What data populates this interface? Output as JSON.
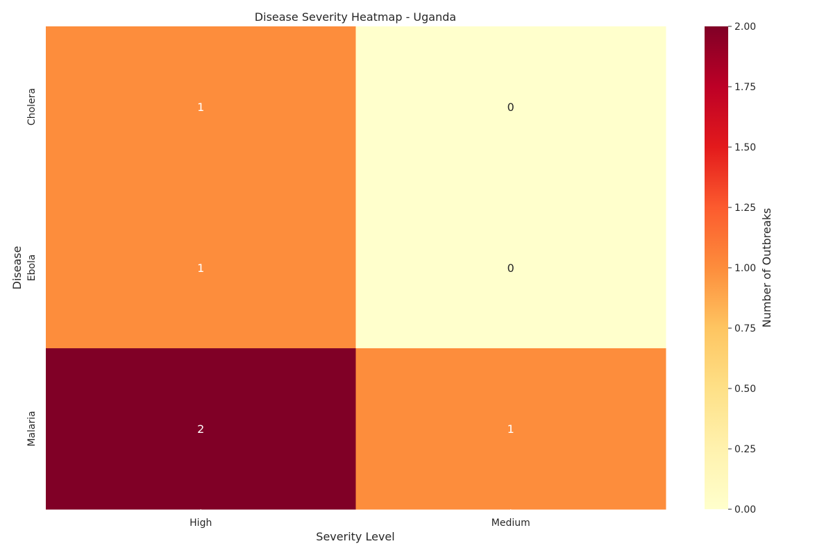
{
  "chart_data": {
    "type": "heatmap",
    "title": "Disease Severity Heatmap - Uganda",
    "xlabel": "Severity Level",
    "ylabel": "Disease",
    "x_categories": [
      "High",
      "Medium"
    ],
    "y_categories": [
      "Cholera",
      "Ebola",
      "Malaria"
    ],
    "values": [
      [
        1,
        0
      ],
      [
        1,
        0
      ],
      [
        2,
        1
      ]
    ],
    "colorbar": {
      "label": "Number of Outbreaks",
      "range": [
        0,
        2
      ],
      "ticks": [
        "0.00",
        "0.25",
        "0.50",
        "0.75",
        "1.00",
        "1.25",
        "1.50",
        "1.75",
        "2.00"
      ],
      "colormap": "YlOrRd"
    },
    "colors": {
      "min": "#ffffcc",
      "mid": "#fd8d3c",
      "max": "#800026"
    }
  }
}
